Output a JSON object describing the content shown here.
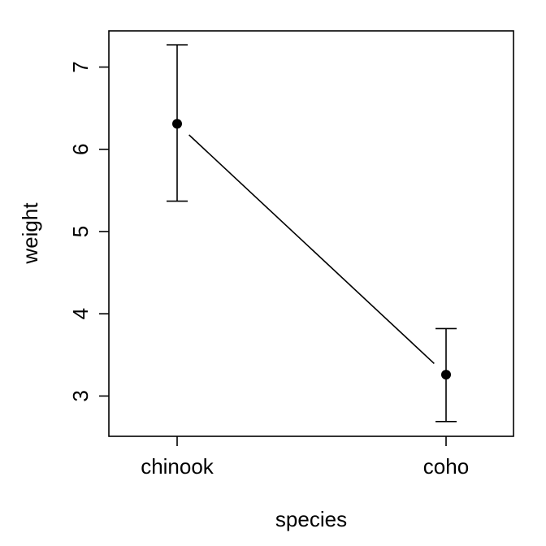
{
  "chart_data": {
    "type": "scatter",
    "title": "",
    "xlabel": "species",
    "ylabel": "weight",
    "categories": [
      "chinook",
      "coho"
    ],
    "series": [
      {
        "values": [
          6.31,
          3.26
        ],
        "lower": [
          5.37,
          2.69
        ],
        "upper": [
          7.27,
          3.82
        ]
      }
    ],
    "yticks": [
      3,
      4,
      5,
      6,
      7
    ],
    "ylim": [
      2.51,
      7.44
    ],
    "grid": false,
    "legend": "none",
    "connect_points": true,
    "error_bars": true,
    "colors": {
      "line": "#000000",
      "point": "#000000",
      "frame": "#000000"
    }
  }
}
